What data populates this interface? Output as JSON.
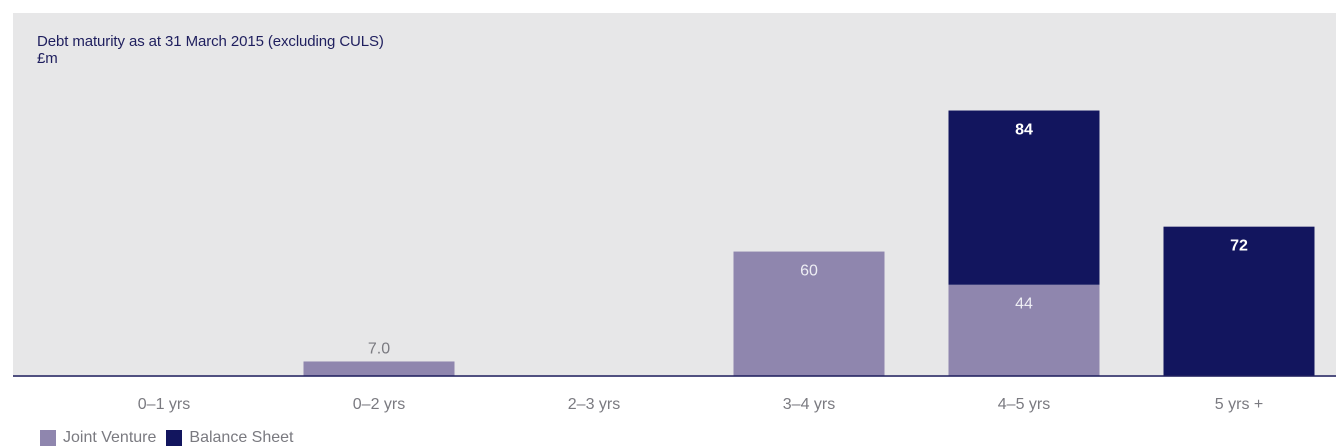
{
  "colors": {
    "joint_venture": "#8f86ae",
    "balance_sheet": "#12155e",
    "panel_background": "#e7e7e8",
    "axis_line": "#1f1f5e",
    "tick_label": "#7a7a80",
    "jv_label": "#eeeef4",
    "jv_label_outside": "#7a7a80",
    "bs_label": "#ffffff"
  },
  "chart_data": {
    "type": "bar",
    "stacked": true,
    "title": "Debt maturity as at 31 March 2015 (excluding CULS)",
    "ylabel": "£m",
    "xlabel": "",
    "categories": [
      "0–1 yrs",
      "0–2 yrs",
      "2–3 yrs",
      "3–4 yrs",
      "4–5 yrs",
      "5 yrs +"
    ],
    "series": [
      {
        "name": "Joint Venture",
        "values": [
          0,
          7.0,
          0,
          60,
          44,
          0
        ],
        "labels": [
          "",
          "7.0",
          "",
          "60",
          "44",
          ""
        ]
      },
      {
        "name": "Balance Sheet",
        "values": [
          0,
          0,
          0,
          0,
          84,
          72
        ],
        "labels": [
          "",
          "",
          "",
          "",
          "84",
          "72"
        ]
      }
    ],
    "ylim": [
      0,
      135
    ],
    "grid": false,
    "legend_position": "bottom-left"
  }
}
